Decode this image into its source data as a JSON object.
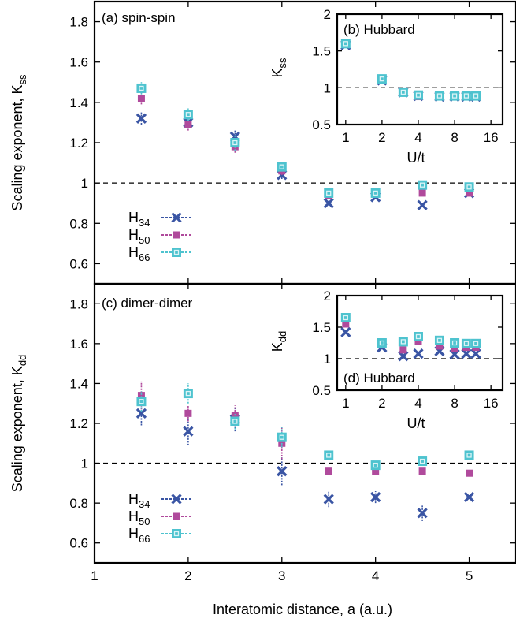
{
  "figure": {
    "xlabel": "Interatomic distance, a (a.u.)",
    "series_legend": [
      {
        "id": "H34",
        "label": "H",
        "sub": "34",
        "color": "#3a55a4",
        "marker": "x"
      },
      {
        "id": "H50",
        "label": "H",
        "sub": "50",
        "color": "#b04a9c",
        "marker": "filled-square"
      },
      {
        "id": "H66",
        "label": "H",
        "sub": "66",
        "color": "#4ec3cf",
        "marker": "open-square"
      }
    ]
  },
  "chart_data": [
    {
      "id": "a",
      "type": "scatter",
      "title": "(a) spin-spin",
      "ylabel": "Scaling exponent, K",
      "ylabel_sub": "ss",
      "xlim": [
        1,
        5.5
      ],
      "ylim": [
        0.5,
        1.9
      ],
      "xticks": [
        1,
        2,
        3,
        4,
        5
      ],
      "yticks": [
        0.6,
        0.8,
        1,
        1.2,
        1.4,
        1.6,
        1.8
      ],
      "ytick_labels": [
        "0.6",
        "0.8",
        "1",
        "1.2",
        "1.4",
        "1.6",
        "1.8"
      ],
      "reference_line": 1,
      "series": [
        {
          "name": "H34",
          "points": [
            [
              1.5,
              1.32,
              0.03
            ],
            [
              2.0,
              1.3,
              0.03
            ],
            [
              2.5,
              1.23,
              0.03
            ],
            [
              3.0,
              1.04,
              0.02
            ],
            [
              3.5,
              0.9,
              0.01
            ],
            [
              4.0,
              0.93,
              0.01
            ],
            [
              4.5,
              0.89,
              0.01
            ],
            [
              5.0,
              0.95,
              0.01
            ]
          ]
        },
        {
          "name": "H50",
          "points": [
            [
              1.5,
              1.42,
              0.03
            ],
            [
              2.0,
              1.29,
              0.03
            ],
            [
              2.5,
              1.18,
              0.03
            ],
            [
              3.0,
              1.06,
              0.02
            ],
            [
              3.5,
              0.94,
              0.01
            ],
            [
              4.0,
              0.95,
              0.01
            ],
            [
              4.5,
              0.95,
              0.01
            ],
            [
              5.0,
              0.95,
              0.01
            ]
          ]
        },
        {
          "name": "H66",
          "points": [
            [
              1.5,
              1.47,
              0.03
            ],
            [
              2.0,
              1.34,
              0.03
            ],
            [
              2.5,
              1.2,
              0.04
            ],
            [
              3.0,
              1.08,
              0.02
            ],
            [
              3.5,
              0.95,
              0.01
            ],
            [
              4.0,
              0.95,
              0.01
            ],
            [
              4.5,
              0.99,
              0.02
            ],
            [
              5.0,
              0.98,
              0.01
            ]
          ]
        }
      ]
    },
    {
      "id": "b",
      "type": "scatter",
      "title": "(b) Hubbard",
      "ylabel": "K",
      "ylabel_sub": "ss",
      "xlabel": "U/t",
      "xscale": "log2",
      "xlim": [
        0.85,
        20
      ],
      "ylim": [
        0.5,
        2
      ],
      "xticks": [
        1,
        2,
        4,
        8,
        16
      ],
      "yticks": [
        0.5,
        1,
        1.5,
        2
      ],
      "ytick_labels": [
        "0.5",
        "1",
        "1.5",
        "2"
      ],
      "reference_line": 1,
      "series": [
        {
          "name": "H34",
          "points": [
            [
              1,
              1.58,
              0.02
            ],
            [
              2,
              1.1,
              0.03
            ],
            [
              3,
              0.94,
              0.02
            ],
            [
              4,
              0.89,
              0.02
            ],
            [
              6,
              0.88,
              0.01
            ],
            [
              8,
              0.88,
              0.01
            ],
            [
              10,
              0.88,
              0.01
            ],
            [
              12,
              0.88,
              0.01
            ]
          ]
        },
        {
          "name": "H50",
          "points": [
            [
              1,
              1.59,
              0.02
            ],
            [
              2,
              1.11,
              0.03
            ],
            [
              3,
              0.93,
              0.02
            ],
            [
              4,
              0.88,
              0.02
            ],
            [
              6,
              0.88,
              0.01
            ],
            [
              8,
              0.88,
              0.01
            ],
            [
              10,
              0.88,
              0.01
            ],
            [
              12,
              0.88,
              0.01
            ]
          ]
        },
        {
          "name": "H66",
          "points": [
            [
              1,
              1.6,
              0.02
            ],
            [
              2,
              1.12,
              0.03
            ],
            [
              3,
              0.94,
              0.02
            ],
            [
              4,
              0.9,
              0.02
            ],
            [
              6,
              0.89,
              0.01
            ],
            [
              8,
              0.89,
              0.01
            ],
            [
              10,
              0.89,
              0.01
            ],
            [
              12,
              0.89,
              0.01
            ]
          ]
        }
      ]
    },
    {
      "id": "c",
      "type": "scatter",
      "title": "(c) dimer-dimer",
      "ylabel": "Scaling exponent, K",
      "ylabel_sub": "dd",
      "xlabel": "Interatomic distance, a (a.u.)",
      "xlim": [
        1,
        5.5
      ],
      "ylim": [
        0.5,
        1.9
      ],
      "xticks": [
        1,
        2,
        3,
        4,
        5
      ],
      "yticks": [
        0.6,
        0.8,
        1,
        1.2,
        1.4,
        1.6,
        1.8
      ],
      "ytick_labels": [
        "0.6",
        "0.8",
        "1",
        "1.2",
        "1.4",
        "1.6",
        "1.8"
      ],
      "reference_line": 1,
      "series": [
        {
          "name": "H34",
          "points": [
            [
              1.5,
              1.25,
              0.06
            ],
            [
              2.0,
              1.16,
              0.07
            ],
            [
              2.5,
              1.22,
              0.06
            ],
            [
              3.0,
              0.96,
              0.07
            ],
            [
              3.5,
              0.82,
              0.04
            ],
            [
              4.0,
              0.83,
              0.03
            ],
            [
              4.5,
              0.75,
              0.04
            ],
            [
              5.0,
              0.83,
              0.01
            ]
          ]
        },
        {
          "name": "H50",
          "points": [
            [
              1.5,
              1.34,
              0.07
            ],
            [
              2.0,
              1.25,
              0.04
            ],
            [
              2.5,
              1.24,
              0.05
            ],
            [
              3.0,
              1.1,
              0.08
            ],
            [
              3.5,
              0.96,
              0.02
            ],
            [
              4.0,
              0.96,
              0.02
            ],
            [
              4.5,
              0.96,
              0.02
            ],
            [
              5.0,
              0.95,
              0.01
            ]
          ]
        },
        {
          "name": "H66",
          "points": [
            [
              1.5,
              1.31,
              0.05
            ],
            [
              2.0,
              1.35,
              0.05
            ],
            [
              2.5,
              1.21,
              0.04
            ],
            [
              3.0,
              1.13,
              0.05
            ],
            [
              3.5,
              1.04,
              0.01
            ],
            [
              4.0,
              0.99,
              0.02
            ],
            [
              4.5,
              1.01,
              0.02
            ],
            [
              5.0,
              1.04,
              0.01
            ]
          ]
        }
      ]
    },
    {
      "id": "d",
      "type": "scatter",
      "title": "(d) Hubbard",
      "ylabel": "K",
      "ylabel_sub": "dd",
      "xlabel": "U/t",
      "xscale": "log2",
      "xlim": [
        0.85,
        20
      ],
      "ylim": [
        0.5,
        2
      ],
      "xticks": [
        1,
        2,
        4,
        8,
        16
      ],
      "yticks": [
        0.5,
        1,
        1.5,
        2
      ],
      "ytick_labels": [
        "0.5",
        "1",
        "1.5",
        "2"
      ],
      "reference_line": 1,
      "series": [
        {
          "name": "H34",
          "points": [
            [
              1,
              1.42,
              0.03
            ],
            [
              2,
              1.18,
              0.03
            ],
            [
              3,
              1.04,
              0.03
            ],
            [
              4,
              1.08,
              0.03
            ],
            [
              6,
              1.12,
              0.02
            ],
            [
              8,
              1.07,
              0.02
            ],
            [
              10,
              1.08,
              0.02
            ],
            [
              12,
              1.08,
              0.02
            ]
          ]
        },
        {
          "name": "H50",
          "points": [
            [
              1,
              1.55,
              0.03
            ],
            [
              2,
              1.22,
              0.03
            ],
            [
              3,
              1.14,
              0.03
            ],
            [
              4,
              1.28,
              0.03
            ],
            [
              6,
              1.2,
              0.02
            ],
            [
              8,
              1.16,
              0.02
            ],
            [
              10,
              1.18,
              0.02
            ],
            [
              12,
              1.18,
              0.02
            ]
          ]
        },
        {
          "name": "H66",
          "points": [
            [
              1,
              1.65,
              0.04
            ],
            [
              2,
              1.25,
              0.03
            ],
            [
              3,
              1.27,
              0.03
            ],
            [
              4,
              1.35,
              0.03
            ],
            [
              6,
              1.29,
              0.02
            ],
            [
              8,
              1.25,
              0.02
            ],
            [
              10,
              1.24,
              0.02
            ],
            [
              12,
              1.24,
              0.02
            ]
          ]
        }
      ]
    }
  ]
}
